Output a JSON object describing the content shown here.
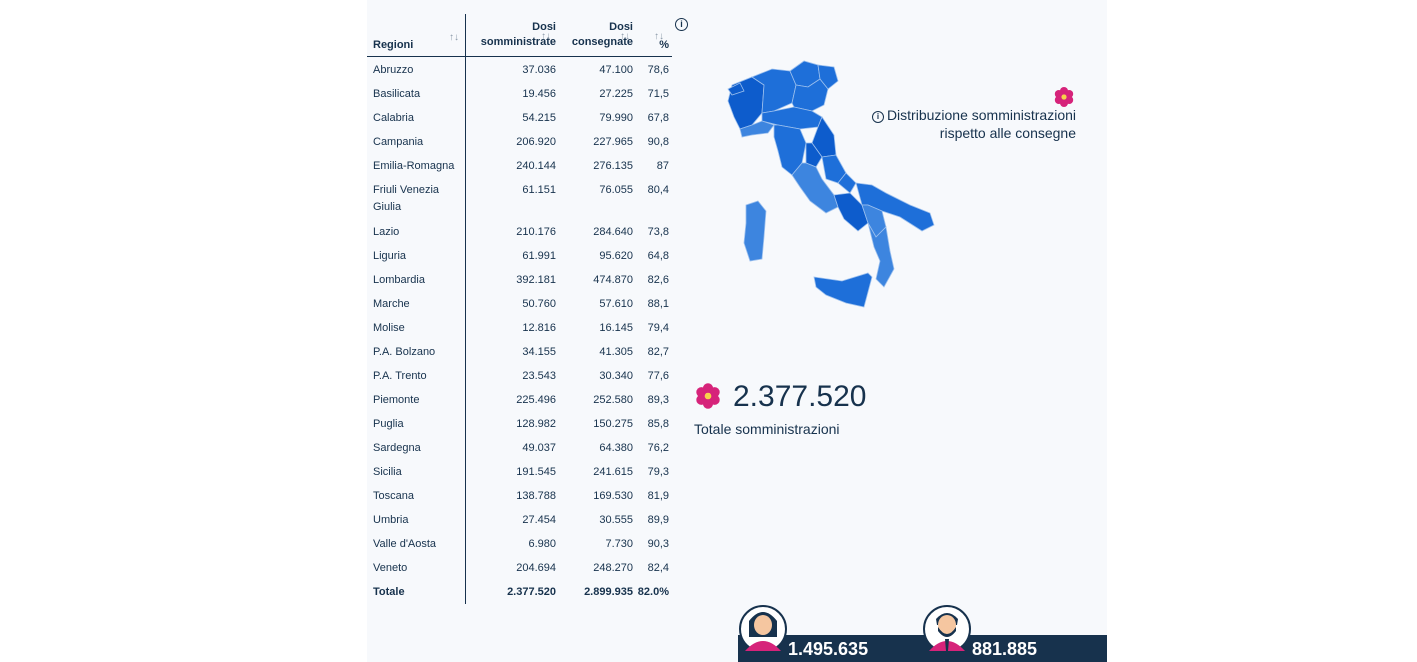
{
  "table": {
    "headers": {
      "region": "Regioni",
      "somm_line1": "Dosi",
      "somm_line2": "somministrate",
      "cons_line1": "Dosi",
      "cons_line2": "consegnate",
      "pct": "%"
    },
    "rows": [
      {
        "region": "Abruzzo",
        "somm": "37.036",
        "cons": "47.100",
        "pct": "78,6"
      },
      {
        "region": "Basilicata",
        "somm": "19.456",
        "cons": "27.225",
        "pct": "71,5"
      },
      {
        "region": "Calabria",
        "somm": "54.215",
        "cons": "79.990",
        "pct": "67,8"
      },
      {
        "region": "Campania",
        "somm": "206.920",
        "cons": "227.965",
        "pct": "90,8"
      },
      {
        "region": "Emilia-Romagna",
        "somm": "240.144",
        "cons": "276.135",
        "pct": "87"
      },
      {
        "region": "Friuli Venezia Giulia",
        "somm": "61.151",
        "cons": "76.055",
        "pct": "80,4"
      },
      {
        "region": "Lazio",
        "somm": "210.176",
        "cons": "284.640",
        "pct": "73,8"
      },
      {
        "region": "Liguria",
        "somm": "61.991",
        "cons": "95.620",
        "pct": "64,8"
      },
      {
        "region": "Lombardia",
        "somm": "392.181",
        "cons": "474.870",
        "pct": "82,6"
      },
      {
        "region": "Marche",
        "somm": "50.760",
        "cons": "57.610",
        "pct": "88,1"
      },
      {
        "region": "Molise",
        "somm": "12.816",
        "cons": "16.145",
        "pct": "79,4"
      },
      {
        "region": "P.A. Bolzano",
        "somm": "34.155",
        "cons": "41.305",
        "pct": "82,7"
      },
      {
        "region": "P.A. Trento",
        "somm": "23.543",
        "cons": "30.340",
        "pct": "77,6"
      },
      {
        "region": "Piemonte",
        "somm": "225.496",
        "cons": "252.580",
        "pct": "89,3"
      },
      {
        "region": "Puglia",
        "somm": "128.982",
        "cons": "150.275",
        "pct": "85,8"
      },
      {
        "region": "Sardegna",
        "somm": "49.037",
        "cons": "64.380",
        "pct": "76,2"
      },
      {
        "region": "Sicilia",
        "somm": "191.545",
        "cons": "241.615",
        "pct": "79,3"
      },
      {
        "region": "Toscana",
        "somm": "138.788",
        "cons": "169.530",
        "pct": "81,9"
      },
      {
        "region": "Umbria",
        "somm": "27.454",
        "cons": "30.555",
        "pct": "89,9"
      },
      {
        "region": "Valle d'Aosta",
        "somm": "6.980",
        "cons": "7.730",
        "pct": "90,3"
      },
      {
        "region": "Veneto",
        "somm": "204.694",
        "cons": "248.270",
        "pct": "82,4"
      }
    ],
    "total": {
      "region": "Totale",
      "somm": "2.377.520",
      "cons": "2.899.935",
      "pct": "82.0%"
    }
  },
  "map": {
    "legend": "Distribuzione somministrazioni rispetto alle consegne",
    "colors": {
      "dark": "#0d5ccc",
      "mid": "#1e6fd9",
      "light": "#3d85df"
    }
  },
  "summary": {
    "total_value": "2.377.520",
    "total_label": "Totale somministrazioni"
  },
  "gender": {
    "women": "1.495.635",
    "men": "881.885"
  },
  "accent": "#d6237a"
}
